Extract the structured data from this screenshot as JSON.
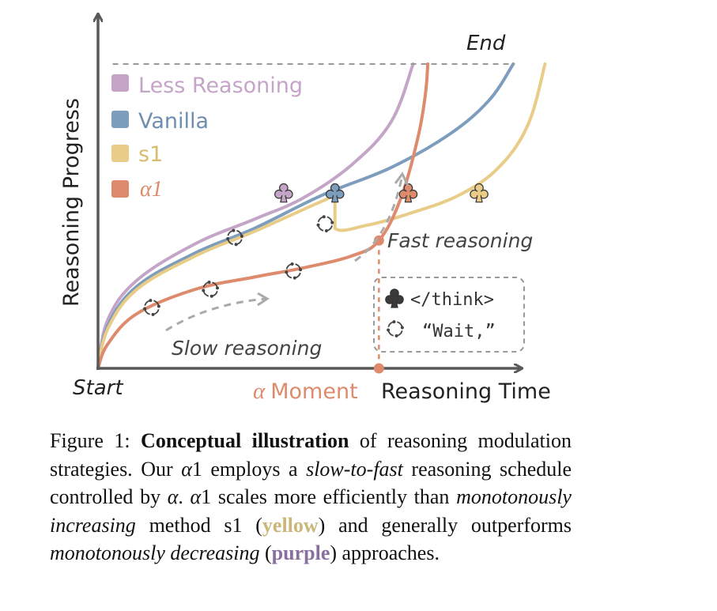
{
  "chart_data": {
    "type": "line",
    "title": "",
    "xlabel": "Reasoning Time",
    "ylabel": "Reasoning Progress",
    "xlim": [
      0,
      1
    ],
    "ylim": [
      0,
      1
    ],
    "x_axis_start_label": "Start",
    "y_end_label": "End",
    "moment_label_symbol": "α",
    "moment_label_text": "Moment",
    "alpha_moment_x": 0.575,
    "end_level_y": 1.0,
    "series": [
      {
        "name": "Less Reasoning",
        "color": "#c5a5c7",
        "points": [
          [
            0,
            0
          ],
          [
            0.02,
            0.16
          ],
          [
            0.08,
            0.29
          ],
          [
            0.2,
            0.41
          ],
          [
            0.32,
            0.49
          ],
          [
            0.42,
            0.56
          ],
          [
            0.52,
            0.67
          ],
          [
            0.6,
            0.81
          ],
          [
            0.645,
            1.0
          ]
        ],
        "club_at": [
          0.38,
          0.58
        ]
      },
      {
        "name": "Vanilla",
        "color": "#7d9dbd",
        "points": [
          [
            0,
            0
          ],
          [
            0.02,
            0.14
          ],
          [
            0.08,
            0.27
          ],
          [
            0.2,
            0.38
          ],
          [
            0.32,
            0.46
          ],
          [
            0.46,
            0.57
          ],
          [
            0.6,
            0.66
          ],
          [
            0.72,
            0.77
          ],
          [
            0.8,
            0.88
          ],
          [
            0.85,
            1.0
          ]
        ],
        "club_at": [
          0.485,
          0.58
        ],
        "wait_at": [
          [
            0.28,
            0.43
          ]
        ]
      },
      {
        "name": "s1",
        "color": "#e8cc87",
        "points": [
          [
            0,
            0
          ],
          [
            0.02,
            0.13
          ],
          [
            0.08,
            0.26
          ],
          [
            0.2,
            0.37
          ],
          [
            0.32,
            0.45
          ],
          [
            0.46,
            0.55
          ],
          [
            0.485,
            0.56
          ],
          [
            0.485,
            0.46
          ],
          [
            0.55,
            0.47
          ],
          [
            0.64,
            0.51
          ],
          [
            0.74,
            0.57
          ],
          [
            0.82,
            0.66
          ],
          [
            0.88,
            0.8
          ],
          [
            0.915,
            1.0
          ]
        ],
        "club_at": [
          0.78,
          0.58
        ],
        "wait_at": [
          [
            0.465,
            0.475
          ]
        ]
      },
      {
        "name": "α1",
        "color": "#de8a6c",
        "points": [
          [
            0,
            0
          ],
          [
            0.02,
            0.08
          ],
          [
            0.08,
            0.18
          ],
          [
            0.2,
            0.26
          ],
          [
            0.32,
            0.3
          ],
          [
            0.42,
            0.33
          ],
          [
            0.52,
            0.37
          ],
          [
            0.575,
            0.42
          ],
          [
            0.62,
            0.56
          ],
          [
            0.655,
            0.76
          ],
          [
            0.67,
            0.9
          ],
          [
            0.675,
            1.0
          ]
        ],
        "club_at": [
          0.635,
          0.58
        ],
        "wait_at": [
          [
            0.11,
            0.2
          ],
          [
            0.23,
            0.26
          ],
          [
            0.4,
            0.32
          ]
        ]
      }
    ],
    "annotations": [
      {
        "text": "Slow reasoning"
      },
      {
        "text": "Fast reasoning"
      }
    ],
    "legend": [
      {
        "label": "Less Reasoning",
        "color": "#c5a5c7"
      },
      {
        "label": "Vanilla",
        "color": "#7d9dbd"
      },
      {
        "label": "s1",
        "color": "#e8cc87"
      },
      {
        "label": "α1",
        "color": "#de8a6c"
      }
    ],
    "legend_placement": "top-left",
    "symbol_key": [
      {
        "symbol": "club",
        "text": "</think>"
      },
      {
        "symbol": "wait",
        "text": "“Wait,”"
      }
    ],
    "axis_color": "#595959",
    "end_line_color": "#999999"
  },
  "caption": {
    "prefix": "Figure 1: ",
    "bold_intro": "Conceptual illustration",
    "t1": " of reasoning modulation strategies. Our ",
    "alpha_sym": "α",
    "t2": "1 employs a ",
    "it1": "slow-to-fast",
    "t3": " reasoning schedule controlled by ",
    "alpha_sym2": "α",
    "t4": ". ",
    "alpha_sym3": "α",
    "t5": "1 scales more efficiently than ",
    "it2": "monotonously increasing",
    "t6": " method s1 (",
    "yellow": "yellow",
    "t7": ") and generally outperforms ",
    "it3": "monotonously decreasing",
    "t8": " (",
    "purple": "purple",
    "t9": ") approaches."
  }
}
